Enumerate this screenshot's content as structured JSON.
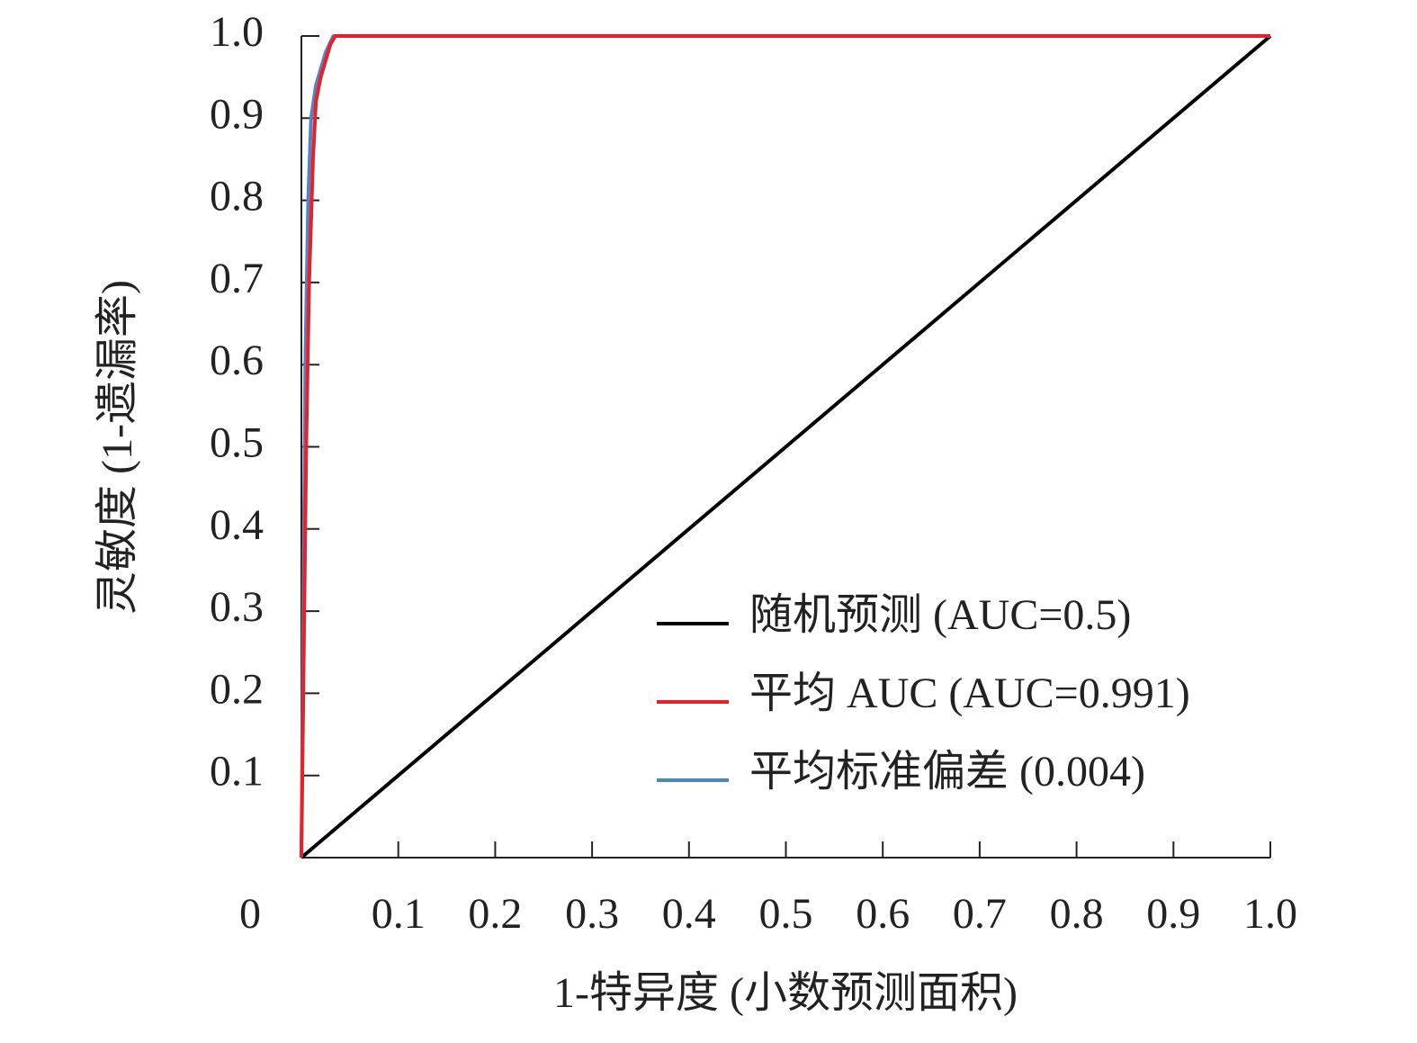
{
  "chart_data": {
    "type": "line",
    "xlabel": "1-特异度 (小数预测面积)",
    "ylabel": "灵敏度 (1-遗漏率)",
    "xlim": [
      0,
      1
    ],
    "ylim": [
      0,
      1
    ],
    "xticks": [
      0,
      0.1,
      0.2,
      0.3,
      0.4,
      0.5,
      0.6,
      0.7,
      0.8,
      0.9,
      {
        "value": 1,
        "label": "1.0"
      }
    ],
    "yticks": [
      0.1,
      0.2,
      0.3,
      0.4,
      0.5,
      0.6,
      0.7,
      0.8,
      0.9,
      {
        "value": 1,
        "label": "1.0"
      }
    ],
    "legend": "lower right",
    "series": [
      {
        "name": "随机预测 (AUC=0.5)",
        "color": "#000000",
        "x": [
          0,
          1
        ],
        "values": [
          0,
          1
        ]
      },
      {
        "name": "平均 AUC (AUC=0.991)",
        "color": "#e8202a",
        "x": [
          0,
          0.002,
          0.005,
          0.008,
          0.012,
          0.015,
          0.02,
          0.025,
          0.03,
          0.035,
          1
        ],
        "values": [
          0,
          0.2,
          0.5,
          0.7,
          0.85,
          0.92,
          0.95,
          0.97,
          0.99,
          1,
          1
        ]
      },
      {
        "name": "平均标准偏差 (0.004)",
        "color": "#4a86c8",
        "x": [
          0,
          0.002,
          0.004,
          0.007,
          0.01,
          0.015,
          0.02,
          0.025,
          0.033,
          0.035
        ],
        "values": [
          0,
          0.3,
          0.6,
          0.8,
          0.9,
          0.94,
          0.96,
          0.98,
          1,
          1
        ]
      }
    ]
  }
}
